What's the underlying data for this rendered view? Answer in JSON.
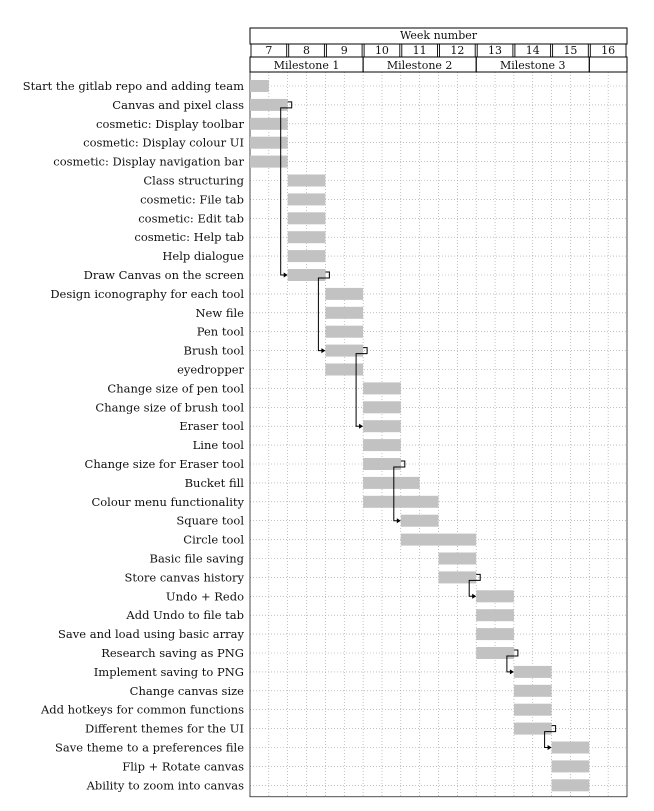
{
  "chart_data": {
    "type": "gantt",
    "header_title": "Week number",
    "weeks": [
      "7",
      "8",
      "9",
      "10",
      "11",
      "12",
      "13",
      "14",
      "15",
      "16"
    ],
    "milestones": [
      {
        "label": "Milestone 1",
        "start_week": 7,
        "end_week": 9
      },
      {
        "label": "Milestone 2",
        "start_week": 10,
        "end_week": 12
      },
      {
        "label": "Milestone 3",
        "start_week": 13,
        "end_week": 15
      }
    ],
    "tasks": [
      {
        "name": "Start the gitlab repo and adding team",
        "start": 7.0,
        "end": 7.5
      },
      {
        "name": "Canvas and pixel class",
        "start": 7.0,
        "end": 8.0
      },
      {
        "name": "cosmetic: Display toolbar",
        "start": 7.0,
        "end": 8.0
      },
      {
        "name": "cosmetic: Display colour UI",
        "start": 7.0,
        "end": 8.0
      },
      {
        "name": "cosmetic: Display navigation bar",
        "start": 7.0,
        "end": 8.0
      },
      {
        "name": "Class structuring",
        "start": 8.0,
        "end": 9.0
      },
      {
        "name": "cosmetic: File tab",
        "start": 8.0,
        "end": 9.0
      },
      {
        "name": "cosmetic: Edit tab",
        "start": 8.0,
        "end": 9.0
      },
      {
        "name": "cosmetic: Help tab",
        "start": 8.0,
        "end": 9.0
      },
      {
        "name": "Help dialogue",
        "start": 8.0,
        "end": 9.0
      },
      {
        "name": "Draw Canvas on the screen",
        "start": 8.0,
        "end": 9.0
      },
      {
        "name": "Design iconography for each tool",
        "start": 9.0,
        "end": 10.0
      },
      {
        "name": "New file",
        "start": 9.0,
        "end": 10.0
      },
      {
        "name": "Pen tool",
        "start": 9.0,
        "end": 10.0
      },
      {
        "name": "Brush tool",
        "start": 9.0,
        "end": 10.0
      },
      {
        "name": "eyedropper",
        "start": 9.0,
        "end": 10.0
      },
      {
        "name": "Change size of pen tool",
        "start": 10.0,
        "end": 11.0
      },
      {
        "name": "Change size of brush tool",
        "start": 10.0,
        "end": 11.0
      },
      {
        "name": "Eraser tool",
        "start": 10.0,
        "end": 11.0
      },
      {
        "name": "Line tool",
        "start": 10.0,
        "end": 11.0
      },
      {
        "name": "Change size for Eraser tool",
        "start": 10.0,
        "end": 11.0
      },
      {
        "name": "Bucket fill",
        "start": 10.0,
        "end": 11.5
      },
      {
        "name": "Colour menu functionality",
        "start": 10.0,
        "end": 12.0
      },
      {
        "name": "Square tool",
        "start": 11.0,
        "end": 12.0
      },
      {
        "name": "Circle tool",
        "start": 11.0,
        "end": 13.0
      },
      {
        "name": "Basic file saving",
        "start": 12.0,
        "end": 13.0
      },
      {
        "name": "Store canvas history",
        "start": 12.0,
        "end": 13.0
      },
      {
        "name": "Undo + Redo",
        "start": 13.0,
        "end": 14.0
      },
      {
        "name": "Add Undo to file tab",
        "start": 13.0,
        "end": 14.0
      },
      {
        "name": "Save and load using basic array",
        "start": 13.0,
        "end": 14.0
      },
      {
        "name": "Research saving as PNG",
        "start": 13.0,
        "end": 14.0
      },
      {
        "name": "Implement saving to PNG",
        "start": 14.0,
        "end": 15.0
      },
      {
        "name": "Change canvas size",
        "start": 14.0,
        "end": 15.0
      },
      {
        "name": "Add hotkeys for common functions",
        "start": 14.0,
        "end": 15.0
      },
      {
        "name": "Different themes for the UI",
        "start": 14.0,
        "end": 15.0
      },
      {
        "name": "Save theme to a preferences file",
        "start": 15.0,
        "end": 16.0
      },
      {
        "name": "Flip + Rotate canvas",
        "start": 15.0,
        "end": 16.0
      },
      {
        "name": "Ability to zoom into canvas",
        "start": 15.0,
        "end": 16.0
      }
    ],
    "dependencies": [
      {
        "from": 1,
        "to": 10
      },
      {
        "from": 10,
        "to": 14
      },
      {
        "from": 14,
        "to": 18
      },
      {
        "from": 20,
        "to": 23
      },
      {
        "from": 26,
        "to": 27
      },
      {
        "from": 30,
        "to": 31
      },
      {
        "from": 34,
        "to": 35
      }
    ],
    "grid": true,
    "bar_color": "#c2c2c2",
    "grid_color": "#9a9a9a",
    "line_color": "#000000"
  }
}
